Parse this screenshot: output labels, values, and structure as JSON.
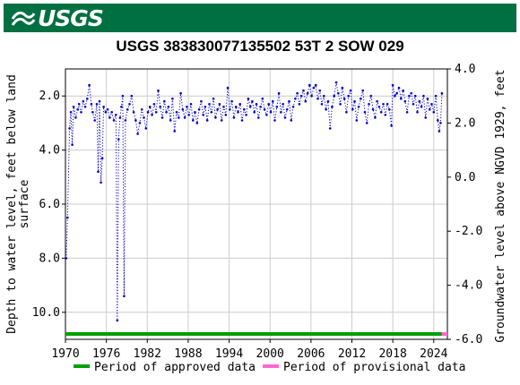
{
  "banner": {
    "logo_text": "USGS",
    "color": "#006f41"
  },
  "chart_data": {
    "type": "scatter",
    "title": "USGS 383830077135502 53T  2 SOW 029",
    "xlabel": "",
    "ylabel_left": "Depth to water level, feet below land surface",
    "ylabel_right": "Groundwater level above NGVD 1929, feet",
    "xlim": [
      1970,
      2026
    ],
    "ylim_left": [
      11.0,
      1.0
    ],
    "ylim_right": [
      -6.0,
      4.0
    ],
    "x_ticks": [
      "1970",
      "1976",
      "1982",
      "1988",
      "1994",
      "2000",
      "2006",
      "2012",
      "2018",
      "2024"
    ],
    "y_ticks_left": [
      "2.0",
      "4.0",
      "6.0",
      "8.0",
      "10.0"
    ],
    "y_ticks_right": [
      "4.0",
      "2.0",
      "0.0",
      "-2.0",
      "-4.0",
      "-6.0"
    ],
    "grid": true,
    "series": [
      {
        "name": "Depth to water level",
        "color": "#0000cc",
        "points": [
          [
            1970.1,
            8.0
          ],
          [
            1970.3,
            6.5
          ],
          [
            1970.6,
            3.2
          ],
          [
            1970.8,
            2.6
          ],
          [
            1971.0,
            3.8
          ],
          [
            1971.2,
            2.4
          ],
          [
            1971.5,
            2.8
          ],
          [
            1971.8,
            2.5
          ],
          [
            1972.0,
            2.3
          ],
          [
            1972.3,
            2.6
          ],
          [
            1972.6,
            2.2
          ],
          [
            1972.9,
            2.4
          ],
          [
            1973.2,
            2.1
          ],
          [
            1973.5,
            1.6
          ],
          [
            1973.8,
            2.3
          ],
          [
            1974.0,
            2.6
          ],
          [
            1974.3,
            2.9
          ],
          [
            1974.6,
            2.3
          ],
          [
            1974.8,
            4.8
          ],
          [
            1975.0,
            2.2
          ],
          [
            1975.2,
            5.2
          ],
          [
            1975.4,
            4.3
          ],
          [
            1975.6,
            2.4
          ],
          [
            1975.9,
            2.6
          ],
          [
            1976.2,
            2.5
          ],
          [
            1976.5,
            2.8
          ],
          [
            1976.8,
            2.6
          ],
          [
            1977.1,
            2.9
          ],
          [
            1977.4,
            2.7
          ],
          [
            1977.6,
            10.3
          ],
          [
            1977.8,
            3.6
          ],
          [
            1978.0,
            2.8
          ],
          [
            1978.2,
            2.4
          ],
          [
            1978.4,
            2.0
          ],
          [
            1978.6,
            9.4
          ],
          [
            1978.8,
            2.9
          ],
          [
            1979.1,
            2.5
          ],
          [
            1979.4,
            2.3
          ],
          [
            1979.7,
            2.0
          ],
          [
            1980.0,
            2.6
          ],
          [
            1980.3,
            2.9
          ],
          [
            1980.6,
            3.4
          ],
          [
            1980.9,
            3.0
          ],
          [
            1981.2,
            2.5
          ],
          [
            1981.5,
            2.8
          ],
          [
            1981.8,
            3.2
          ],
          [
            1982.1,
            2.6
          ],
          [
            1982.4,
            2.4
          ],
          [
            1982.7,
            2.7
          ],
          [
            1983.0,
            2.3
          ],
          [
            1983.3,
            2.6
          ],
          [
            1983.6,
            1.8
          ],
          [
            1983.9,
            2.4
          ],
          [
            1984.2,
            2.8
          ],
          [
            1984.5,
            2.2
          ],
          [
            1984.8,
            2.6
          ],
          [
            1985.1,
            2.4
          ],
          [
            1985.4,
            2.9
          ],
          [
            1985.7,
            2.1
          ],
          [
            1986.0,
            3.3
          ],
          [
            1986.3,
            2.6
          ],
          [
            1986.6,
            2.8
          ],
          [
            1986.9,
            1.9
          ],
          [
            1987.2,
            2.5
          ],
          [
            1987.5,
            2.8
          ],
          [
            1987.8,
            2.4
          ],
          [
            1988.1,
            2.7
          ],
          [
            1988.4,
            2.3
          ],
          [
            1988.7,
            2.9
          ],
          [
            1989.0,
            2.6
          ],
          [
            1989.3,
            3.0
          ],
          [
            1989.6,
            2.5
          ],
          [
            1989.9,
            2.2
          ],
          [
            1990.2,
            2.7
          ],
          [
            1990.5,
            2.4
          ],
          [
            1990.8,
            2.9
          ],
          [
            1991.1,
            2.3
          ],
          [
            1991.4,
            2.6
          ],
          [
            1991.7,
            2.1
          ],
          [
            1992.0,
            2.8
          ],
          [
            1992.3,
            2.5
          ],
          [
            1992.6,
            2.3
          ],
          [
            1992.9,
            2.9
          ],
          [
            1993.2,
            2.4
          ],
          [
            1993.5,
            2.7
          ],
          [
            1993.8,
            1.7
          ],
          [
            1994.1,
            2.5
          ],
          [
            1994.4,
            2.2
          ],
          [
            1994.7,
            2.8
          ],
          [
            1995.0,
            2.4
          ],
          [
            1995.3,
            2.6
          ],
          [
            1995.6,
            2.3
          ],
          [
            1995.9,
            2.9
          ],
          [
            1996.2,
            2.5
          ],
          [
            1996.5,
            2.7
          ],
          [
            1996.8,
            2.1
          ],
          [
            1997.1,
            2.4
          ],
          [
            1997.4,
            2.2
          ],
          [
            1997.7,
            2.6
          ],
          [
            1998.0,
            2.3
          ],
          [
            1998.3,
            2.8
          ],
          [
            1998.6,
            2.4
          ],
          [
            1998.9,
            2.1
          ],
          [
            1999.2,
            2.5
          ],
          [
            1999.5,
            2.7
          ],
          [
            1999.8,
            2.3
          ],
          [
            2000.1,
            2.6
          ],
          [
            2000.4,
            2.2
          ],
          [
            2000.7,
            2.9
          ],
          [
            2001.0,
            2.4
          ],
          [
            2001.3,
            1.9
          ],
          [
            2001.6,
            2.6
          ],
          [
            2001.9,
            2.3
          ],
          [
            2002.2,
            2.8
          ],
          [
            2002.5,
            2.5
          ],
          [
            2002.8,
            2.2
          ],
          [
            2003.1,
            2.9
          ],
          [
            2003.4,
            2.4
          ],
          [
            2003.7,
            2.1
          ],
          [
            2004.0,
            1.9
          ],
          [
            2004.3,
            2.3
          ],
          [
            2004.6,
            2.0
          ],
          [
            2004.9,
            1.8
          ],
          [
            2005.2,
            2.2
          ],
          [
            2005.5,
            1.9
          ],
          [
            2005.8,
            1.6
          ],
          [
            2006.1,
            2.0
          ],
          [
            2006.4,
            1.7
          ],
          [
            2006.7,
            1.6
          ],
          [
            2007.0,
            2.1
          ],
          [
            2007.3,
            1.8
          ],
          [
            2007.6,
            2.3
          ],
          [
            2007.9,
            2.0
          ],
          [
            2008.2,
            2.5
          ],
          [
            2008.5,
            2.2
          ],
          [
            2008.8,
            3.2
          ],
          [
            2009.1,
            2.4
          ],
          [
            2009.4,
            2.0
          ],
          [
            2009.7,
            1.5
          ],
          [
            2010.0,
            1.9
          ],
          [
            2010.3,
            2.3
          ],
          [
            2010.6,
            1.7
          ],
          [
            2010.9,
            2.1
          ],
          [
            2011.2,
            2.6
          ],
          [
            2011.5,
            2.0
          ],
          [
            2011.8,
            1.8
          ],
          [
            2012.1,
            2.5
          ],
          [
            2012.4,
            2.2
          ],
          [
            2012.7,
            2.9
          ],
          [
            2013.0,
            2.4
          ],
          [
            2013.3,
            2.1
          ],
          [
            2013.6,
            1.8
          ],
          [
            2013.9,
            2.6
          ],
          [
            2014.2,
            3.0
          ],
          [
            2014.5,
            2.3
          ],
          [
            2014.8,
            2.0
          ],
          [
            2015.1,
            2.5
          ],
          [
            2015.4,
            2.8
          ],
          [
            2015.7,
            2.2
          ],
          [
            2016.0,
            2.4
          ],
          [
            2016.3,
            2.6
          ],
          [
            2016.6,
            2.3
          ],
          [
            2016.9,
            2.7
          ],
          [
            2017.2,
            2.3
          ],
          [
            2017.5,
            2.5
          ],
          [
            2017.8,
            3.1
          ],
          [
            2018.0,
            1.6
          ],
          [
            2018.3,
            2.0
          ],
          [
            2018.6,
            1.9
          ],
          [
            2018.9,
            1.7
          ],
          [
            2019.2,
            2.1
          ],
          [
            2019.5,
            1.8
          ],
          [
            2019.8,
            2.2
          ],
          [
            2020.1,
            2.6
          ],
          [
            2020.4,
            2.0
          ],
          [
            2020.7,
            1.9
          ],
          [
            2021.0,
            2.3
          ],
          [
            2021.3,
            2.0
          ],
          [
            2021.6,
            2.6
          ],
          [
            2021.9,
            2.2
          ],
          [
            2022.2,
            2.4
          ],
          [
            2022.5,
            2.0
          ],
          [
            2022.8,
            2.8
          ],
          [
            2023.1,
            2.1
          ],
          [
            2023.4,
            2.5
          ],
          [
            2023.7,
            2.3
          ],
          [
            2024.0,
            2.6
          ],
          [
            2024.3,
            2.0
          ],
          [
            2024.6,
            2.9
          ],
          [
            2024.8,
            3.3
          ],
          [
            2025.0,
            3.0
          ],
          [
            2025.2,
            1.9
          ]
        ]
      }
    ],
    "legend": {
      "placement": "bottom",
      "items": [
        {
          "label": "Period of approved data",
          "color": "#00a000"
        },
        {
          "label": "Period of provisional data",
          "color": "#ff66cc"
        }
      ]
    },
    "periods": [
      {
        "type": "approved",
        "start": 1970,
        "end": 2025.2,
        "color": "#00a000"
      },
      {
        "type": "provisional",
        "start": 2025.2,
        "end": 2026,
        "color": "#ff66cc"
      }
    ]
  }
}
